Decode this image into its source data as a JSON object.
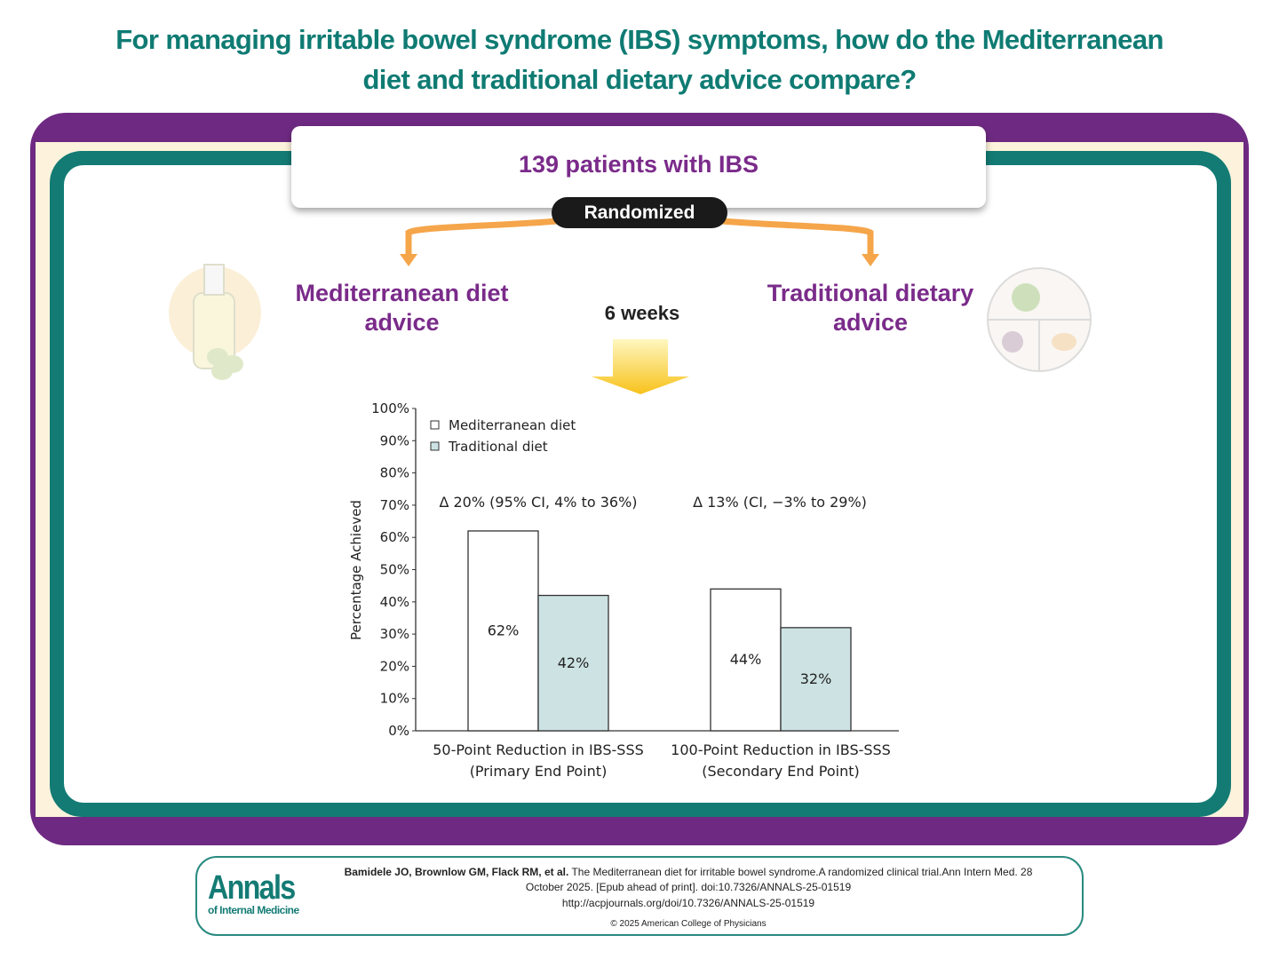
{
  "title_line1": "For managing irritable bowel syndrome (IBS) symptoms, how do the Mediterranean",
  "title_line2": "diet and traditional dietary advice compare?",
  "patients": "139 patients with IBS",
  "randomized": "Randomized",
  "arm_left_1": "Mediterranean diet",
  "arm_left_2": "advice",
  "arm_right_1": "Traditional dietary",
  "arm_right_2": "advice",
  "duration": "6 weeks",
  "colors": {
    "purple": "#6e2a82",
    "teal": "#137b74",
    "title": "#0f7b73",
    "arrow": "#f5a54a",
    "trad_bar": "#cde3e3"
  },
  "chart_data": {
    "type": "bar",
    "ylabel": "Percentage Achieved",
    "ylim": [
      0,
      100
    ],
    "yticks": [
      "0%",
      "10%",
      "20%",
      "30%",
      "40%",
      "50%",
      "60%",
      "70%",
      "80%",
      "90%",
      "100%"
    ],
    "categories": [
      [
        "50-Point Reduction in IBS-SSS",
        "(Primary End Point)"
      ],
      [
        "100-Point Reduction in IBS-SSS",
        "(Secondary End Point)"
      ]
    ],
    "series": [
      {
        "name": "Mediterranean diet",
        "values": [
          62,
          44
        ],
        "labels": [
          "62%",
          "44%"
        ]
      },
      {
        "name": "Traditional diet",
        "values": [
          42,
          32
        ],
        "labels": [
          "42%",
          "32%"
        ]
      }
    ],
    "annotations": [
      "Δ 20% (95% CI, 4% to 36%)",
      "Δ 13% (CI, −3% to 29%)"
    ],
    "legend": "top-left",
    "grid": false
  },
  "footer": {
    "logo_main": "Annals",
    "logo_sub": "of Internal Medicine",
    "citation_authors": "Bamidele JO, Brownlow GM, Flack RM, et al.",
    "citation_line1": "The Mediterranean diet for irritable bowel syndrome.A randomized clinical trial.Ann Intern Med. 28",
    "citation_line2": "October 2025. [Epub ahead of print]. doi:10.7326/ANNALS-25-01519",
    "url": "http://acpjournals.org/doi/10.7326/ANNALS-25-01519",
    "copyright": "© 2025 American College of Physicians"
  }
}
